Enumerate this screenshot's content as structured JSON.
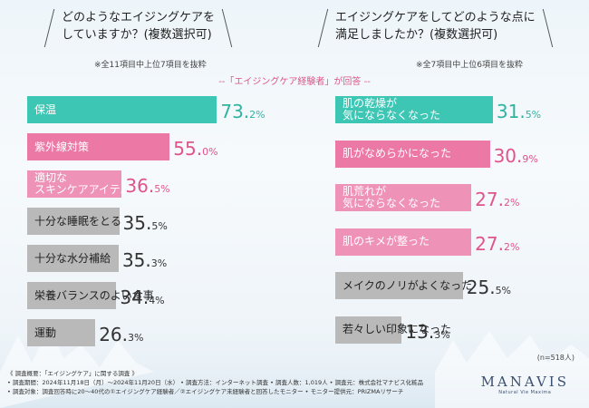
{
  "questions": {
    "left": {
      "line1": "どのようなエイジングケアを",
      "line2": "していますか？(複数選択可)",
      "note": "※全11項目中上位7項目を抜粋"
    },
    "right": {
      "line1": "エイジングケアをしてどのような点に",
      "line2": "満足しましたか？(複数選択可)",
      "note": "※全7項目中上位6項目を抜粋"
    }
  },
  "subtitle": "--「エイジングケア経験者」が回答 --",
  "colors": {
    "teal": "#3ec6b4",
    "pink": "#ec79a5",
    "pink_light": "#ee93b7",
    "gray": "#b9b9b9",
    "teal_text": "#2fb3a1",
    "pink_text": "#e0538c",
    "gray_text": "#333333"
  },
  "chart_data": [
    {
      "type": "bar",
      "orientation": "horizontal",
      "categories": [
        "保温",
        "紫外線対策",
        "適切な\nスキンケアアイテムの選択",
        "十分な睡眠をとる",
        "十分な水分補給",
        "栄養バランスのよい食事",
        "運動"
      ],
      "values": [
        73.2,
        55.0,
        36.5,
        35.5,
        35.3,
        34.4,
        26.3
      ],
      "value_labels": [
        [
          "73.",
          "2%"
        ],
        [
          "55.",
          "0%"
        ],
        [
          "36.",
          "5%"
        ],
        [
          "35.",
          "5%"
        ],
        [
          "35.",
          "3%"
        ],
        [
          "34.",
          "4%"
        ],
        [
          "26.",
          "3%"
        ]
      ],
      "bar_colors": [
        "teal",
        "pink",
        "pink_light",
        "gray",
        "gray",
        "gray",
        "gray"
      ],
      "value_colors": [
        "teal_text",
        "pink_text",
        "pink_text",
        "gray_text",
        "gray_text",
        "gray_text",
        "gray_text"
      ],
      "label_colors": [
        "#ffffff",
        "#ffffff",
        "#ffffff",
        "#222222",
        "#222222",
        "#222222",
        "#222222"
      ],
      "unit": "%"
    },
    {
      "type": "bar",
      "orientation": "horizontal",
      "categories": [
        "肌の乾燥が\n気にならなくなった",
        "肌がなめらかになった",
        "肌荒れが\n気にならなくなった",
        "肌のキメが整った",
        "メイクのノリがよくなった",
        "若々しい印象になった"
      ],
      "values": [
        31.5,
        30.9,
        27.2,
        27.2,
        25.5,
        13.3
      ],
      "value_labels": [
        [
          "31.",
          "5%"
        ],
        [
          "30.",
          "9%"
        ],
        [
          "27.",
          "2%"
        ],
        [
          "27.",
          "2%"
        ],
        [
          "25.",
          "5%"
        ],
        [
          "13.",
          "3%"
        ]
      ],
      "bar_colors": [
        "teal",
        "pink",
        "pink_light",
        "pink_light",
        "gray",
        "gray"
      ],
      "value_colors": [
        "teal_text",
        "pink_text",
        "pink_text",
        "pink_text",
        "gray_text",
        "gray_text"
      ],
      "label_colors": [
        "#ffffff",
        "#ffffff",
        "#ffffff",
        "#ffffff",
        "#222222",
        "#222222"
      ],
      "unit": "%"
    }
  ],
  "sample_note": "(n=518人)",
  "footer": {
    "line1": "《 調査概要：「エイジングケア」に関する調査 》",
    "line2": "• 調査期間：2024年11月18日（月）〜2024年11月20日（水） • 調査方法：インターネット調査 • 調査人数：1,019人 • 調査元：株式会社マナビス化粧品",
    "line3": "• 調査対象：調査回答時に20〜40代の①エイジングケア経験者／②エイジングケア未経験者と回答したモニター • モニター提供元：PRIZMAリサーチ"
  },
  "logo": {
    "mark": "MANAVIS",
    "tagline": "Natural Vie Maxima"
  }
}
